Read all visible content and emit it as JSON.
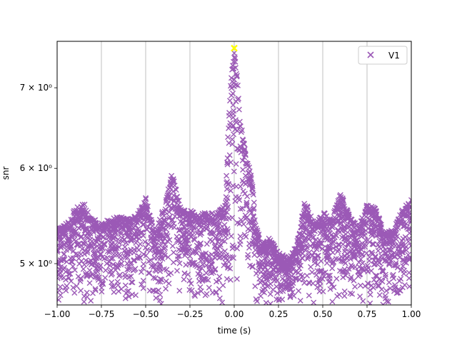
{
  "chart_data": {
    "type": "scatter",
    "title": "",
    "xlabel": "time (s)",
    "ylabel": "snr",
    "xlim": [
      -1.0,
      1.0
    ],
    "ylim": [
      4.62,
      7.65
    ],
    "yscale": "log",
    "grid": "vertical",
    "legend_position": "top-right",
    "x_ticks": [
      {
        "value": -1.0,
        "label": "−1.00"
      },
      {
        "value": -0.75,
        "label": "−0.75"
      },
      {
        "value": -0.5,
        "label": "−0.50"
      },
      {
        "value": -0.25,
        "label": "−0.25"
      },
      {
        "value": 0.0,
        "label": "0.00"
      },
      {
        "value": 0.25,
        "label": "0.25"
      },
      {
        "value": 0.5,
        "label": "0.50"
      },
      {
        "value": 0.75,
        "label": "0.75"
      },
      {
        "value": 1.0,
        "label": "1.00"
      }
    ],
    "y_ticks": [
      {
        "value": 5,
        "label": "5 × 10⁰"
      },
      {
        "value": 6,
        "label": "6 × 10⁰"
      },
      {
        "value": 7,
        "label": "7 × 10⁰"
      }
    ],
    "series": [
      {
        "name": "V1",
        "marker": "x",
        "color": "#9b59b6",
        "envelope": [
          {
            "x": -1.0,
            "y": 5.35
          },
          {
            "x": -0.95,
            "y": 5.4
          },
          {
            "x": -0.9,
            "y": 5.55
          },
          {
            "x": -0.85,
            "y": 5.62
          },
          {
            "x": -0.8,
            "y": 5.45
          },
          {
            "x": -0.75,
            "y": 5.4
          },
          {
            "x": -0.7,
            "y": 5.45
          },
          {
            "x": -0.65,
            "y": 5.48
          },
          {
            "x": -0.6,
            "y": 5.45
          },
          {
            "x": -0.55,
            "y": 5.48
          },
          {
            "x": -0.5,
            "y": 5.68
          },
          {
            "x": -0.45,
            "y": 5.3
          },
          {
            "x": -0.4,
            "y": 5.55
          },
          {
            "x": -0.35,
            "y": 5.95
          },
          {
            "x": -0.3,
            "y": 5.55
          },
          {
            "x": -0.25,
            "y": 5.55
          },
          {
            "x": -0.2,
            "y": 5.5
          },
          {
            "x": -0.15,
            "y": 5.52
          },
          {
            "x": -0.1,
            "y": 5.5
          },
          {
            "x": -0.05,
            "y": 5.6
          },
          {
            "x": -0.03,
            "y": 6.7
          },
          {
            "x": -0.015,
            "y": 7.2
          },
          {
            "x": 0.0,
            "y": 7.55
          },
          {
            "x": 0.015,
            "y": 7.2
          },
          {
            "x": 0.03,
            "y": 6.7
          },
          {
            "x": 0.05,
            "y": 6.35
          },
          {
            "x": 0.08,
            "y": 6.05
          },
          {
            "x": 0.1,
            "y": 5.9
          },
          {
            "x": 0.12,
            "y": 5.45
          },
          {
            "x": 0.15,
            "y": 5.2
          },
          {
            "x": 0.2,
            "y": 5.25
          },
          {
            "x": 0.25,
            "y": 5.12
          },
          {
            "x": 0.3,
            "y": 5.05
          },
          {
            "x": 0.35,
            "y": 5.18
          },
          {
            "x": 0.4,
            "y": 5.65
          },
          {
            "x": 0.45,
            "y": 5.4
          },
          {
            "x": 0.5,
            "y": 5.52
          },
          {
            "x": 0.55,
            "y": 5.45
          },
          {
            "x": 0.6,
            "y": 5.72
          },
          {
            "x": 0.65,
            "y": 5.5
          },
          {
            "x": 0.7,
            "y": 5.35
          },
          {
            "x": 0.75,
            "y": 5.62
          },
          {
            "x": 0.8,
            "y": 5.55
          },
          {
            "x": 0.85,
            "y": 5.3
          },
          {
            "x": 0.9,
            "y": 5.35
          },
          {
            "x": 0.95,
            "y": 5.55
          },
          {
            "x": 1.0,
            "y": 5.65
          }
        ],
        "sample_count": 2200
      }
    ],
    "highlight": {
      "x": 0.0,
      "y": 7.55,
      "marker": "x",
      "color": "#ffff00"
    }
  }
}
